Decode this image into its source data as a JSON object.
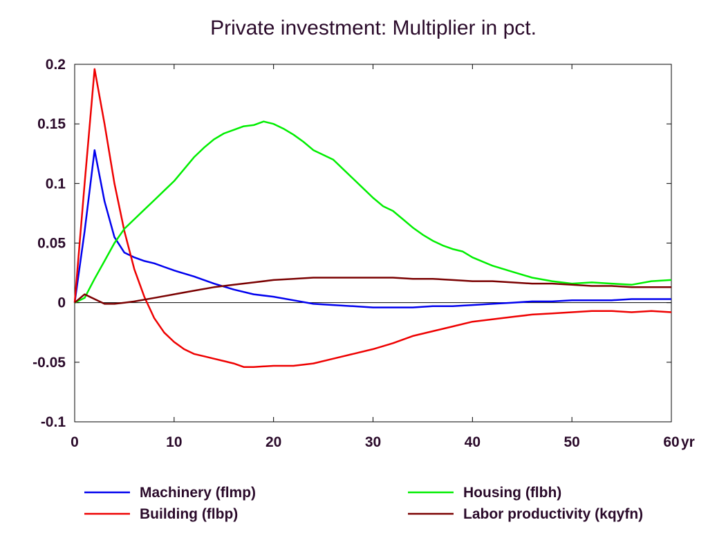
{
  "chart_data": {
    "type": "line",
    "title": "Private investment: Multiplier in pct.",
    "xlabel": "",
    "ylabel": "",
    "x_unit_label": "yr",
    "xlim": [
      0,
      60
    ],
    "ylim": [
      -0.1,
      0.2
    ],
    "xticks": [
      0,
      10,
      20,
      30,
      40,
      50,
      60
    ],
    "yticks": [
      0.2,
      0.15,
      0.1,
      0.05,
      0,
      -0.05,
      -0.1
    ],
    "ytick_labels": [
      "0.2",
      "0.15",
      "0.1",
      "0.05",
      "0",
      "-0.05",
      "-0.1"
    ],
    "grid": false,
    "zero_line": true,
    "legend_position": "bottom",
    "series": [
      {
        "name": "Machinery (flmp)",
        "color": "#0000ee",
        "points": [
          [
            0,
            0
          ],
          [
            1,
            0.06
          ],
          [
            2,
            0.128
          ],
          [
            3,
            0.085
          ],
          [
            4,
            0.055
          ],
          [
            5,
            0.042
          ],
          [
            6,
            0.038
          ],
          [
            7,
            0.035
          ],
          [
            8,
            0.033
          ],
          [
            9,
            0.03
          ],
          [
            10,
            0.027
          ],
          [
            12,
            0.022
          ],
          [
            14,
            0.016
          ],
          [
            16,
            0.011
          ],
          [
            18,
            0.007
          ],
          [
            20,
            0.005
          ],
          [
            22,
            0.002
          ],
          [
            24,
            -0.001
          ],
          [
            26,
            -0.002
          ],
          [
            28,
            -0.003
          ],
          [
            30,
            -0.004
          ],
          [
            32,
            -0.004
          ],
          [
            34,
            -0.004
          ],
          [
            36,
            -0.003
          ],
          [
            38,
            -0.003
          ],
          [
            40,
            -0.002
          ],
          [
            42,
            -0.001
          ],
          [
            44,
            0
          ],
          [
            46,
            0.001
          ],
          [
            48,
            0.001
          ],
          [
            50,
            0.002
          ],
          [
            52,
            0.002
          ],
          [
            54,
            0.002
          ],
          [
            56,
            0.003
          ],
          [
            58,
            0.003
          ],
          [
            60,
            0.003
          ]
        ]
      },
      {
        "name": "Building (flbp)",
        "color": "#ee0000",
        "points": [
          [
            0,
            0
          ],
          [
            1,
            0.1
          ],
          [
            2,
            0.196
          ],
          [
            3,
            0.15
          ],
          [
            4,
            0.1
          ],
          [
            5,
            0.06
          ],
          [
            6,
            0.028
          ],
          [
            7,
            0.005
          ],
          [
            8,
            -0.013
          ],
          [
            9,
            -0.025
          ],
          [
            10,
            -0.033
          ],
          [
            11,
            -0.039
          ],
          [
            12,
            -0.043
          ],
          [
            13,
            -0.045
          ],
          [
            14,
            -0.047
          ],
          [
            15,
            -0.049
          ],
          [
            16,
            -0.051
          ],
          [
            17,
            -0.054
          ],
          [
            18,
            -0.054
          ],
          [
            20,
            -0.053
          ],
          [
            22,
            -0.053
          ],
          [
            24,
            -0.051
          ],
          [
            26,
            -0.047
          ],
          [
            28,
            -0.043
          ],
          [
            30,
            -0.039
          ],
          [
            32,
            -0.034
          ],
          [
            34,
            -0.028
          ],
          [
            36,
            -0.024
          ],
          [
            38,
            -0.02
          ],
          [
            40,
            -0.016
          ],
          [
            42,
            -0.014
          ],
          [
            44,
            -0.012
          ],
          [
            46,
            -0.01
          ],
          [
            48,
            -0.009
          ],
          [
            50,
            -0.008
          ],
          [
            52,
            -0.007
          ],
          [
            54,
            -0.007
          ],
          [
            56,
            -0.008
          ],
          [
            58,
            -0.007
          ],
          [
            60,
            -0.008
          ]
        ]
      },
      {
        "name": "Housing (flbh)",
        "color": "#00ee00",
        "points": [
          [
            0,
            0
          ],
          [
            1,
            0.004
          ],
          [
            2,
            0.02
          ],
          [
            3,
            0.035
          ],
          [
            4,
            0.05
          ],
          [
            5,
            0.062
          ],
          [
            6,
            0.07
          ],
          [
            7,
            0.078
          ],
          [
            8,
            0.086
          ],
          [
            9,
            0.094
          ],
          [
            10,
            0.102
          ],
          [
            11,
            0.112
          ],
          [
            12,
            0.122
          ],
          [
            13,
            0.13
          ],
          [
            14,
            0.137
          ],
          [
            15,
            0.142
          ],
          [
            16,
            0.145
          ],
          [
            17,
            0.148
          ],
          [
            18,
            0.149
          ],
          [
            19,
            0.152
          ],
          [
            20,
            0.15
          ],
          [
            21,
            0.146
          ],
          [
            22,
            0.141
          ],
          [
            23,
            0.135
          ],
          [
            24,
            0.128
          ],
          [
            25,
            0.124
          ],
          [
            26,
            0.12
          ],
          [
            27,
            0.112
          ],
          [
            28,
            0.104
          ],
          [
            29,
            0.096
          ],
          [
            30,
            0.088
          ],
          [
            31,
            0.081
          ],
          [
            32,
            0.077
          ],
          [
            33,
            0.07
          ],
          [
            34,
            0.063
          ],
          [
            35,
            0.057
          ],
          [
            36,
            0.052
          ],
          [
            37,
            0.048
          ],
          [
            38,
            0.045
          ],
          [
            39,
            0.043
          ],
          [
            40,
            0.038
          ],
          [
            42,
            0.031
          ],
          [
            44,
            0.026
          ],
          [
            46,
            0.021
          ],
          [
            48,
            0.018
          ],
          [
            50,
            0.016
          ],
          [
            52,
            0.017
          ],
          [
            54,
            0.016
          ],
          [
            56,
            0.015
          ],
          [
            58,
            0.018
          ],
          [
            60,
            0.019
          ]
        ]
      },
      {
        "name": "Labor productivity (kqyfn)",
        "color": "#7a0000",
        "points": [
          [
            0,
            0
          ],
          [
            1,
            0.007
          ],
          [
            2,
            0.003
          ],
          [
            3,
            -0.001
          ],
          [
            4,
            -0.001
          ],
          [
            5,
            0
          ],
          [
            6,
            0.001
          ],
          [
            8,
            0.004
          ],
          [
            10,
            0.007
          ],
          [
            12,
            0.01
          ],
          [
            14,
            0.013
          ],
          [
            16,
            0.015
          ],
          [
            18,
            0.017
          ],
          [
            20,
            0.019
          ],
          [
            22,
            0.02
          ],
          [
            24,
            0.021
          ],
          [
            26,
            0.021
          ],
          [
            28,
            0.021
          ],
          [
            30,
            0.021
          ],
          [
            32,
            0.021
          ],
          [
            34,
            0.02
          ],
          [
            36,
            0.02
          ],
          [
            38,
            0.019
          ],
          [
            40,
            0.018
          ],
          [
            42,
            0.018
          ],
          [
            44,
            0.017
          ],
          [
            46,
            0.016
          ],
          [
            48,
            0.016
          ],
          [
            50,
            0.015
          ],
          [
            52,
            0.014
          ],
          [
            54,
            0.014
          ],
          [
            56,
            0.013
          ],
          [
            58,
            0.013
          ],
          [
            60,
            0.013
          ]
        ]
      }
    ]
  }
}
